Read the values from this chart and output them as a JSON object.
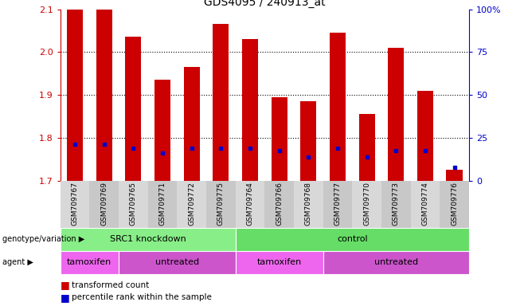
{
  "title": "GDS4095 / 240913_at",
  "samples": [
    "GSM709767",
    "GSM709769",
    "GSM709765",
    "GSM709771",
    "GSM709772",
    "GSM709775",
    "GSM709764",
    "GSM709766",
    "GSM709768",
    "GSM709777",
    "GSM709770",
    "GSM709773",
    "GSM709774",
    "GSM709776"
  ],
  "bar_tops": [
    2.1,
    2.1,
    2.035,
    1.935,
    1.965,
    2.065,
    2.03,
    1.895,
    1.885,
    2.045,
    1.855,
    2.01,
    1.91,
    1.725
  ],
  "bar_base": 1.7,
  "percentile_values": [
    1.785,
    1.785,
    1.775,
    1.765,
    1.775,
    1.775,
    1.775,
    1.77,
    1.755,
    1.775,
    1.755,
    1.77,
    1.77,
    1.73
  ],
  "ylim_left": [
    1.7,
    2.1
  ],
  "ylim_right": [
    0,
    100
  ],
  "yticks_left": [
    1.7,
    1.8,
    1.9,
    2.0,
    2.1
  ],
  "yticks_right": [
    0,
    25,
    50,
    75,
    100
  ],
  "bar_color": "#cc0000",
  "percentile_color": "#0000cc",
  "bar_width": 0.55,
  "groups": [
    {
      "label": "SRC1 knockdown",
      "start": 0,
      "end": 6,
      "color": "#88ee88"
    },
    {
      "label": "control",
      "start": 6,
      "end": 14,
      "color": "#66dd66"
    }
  ],
  "agents": [
    {
      "label": "tamoxifen",
      "start": 0,
      "end": 2,
      "color": "#ee66ee"
    },
    {
      "label": "untreated",
      "start": 2,
      "end": 6,
      "color": "#cc55cc"
    },
    {
      "label": "tamoxifen",
      "start": 6,
      "end": 9,
      "color": "#ee66ee"
    },
    {
      "label": "untreated",
      "start": 9,
      "end": 14,
      "color": "#cc55cc"
    }
  ],
  "legend_items": [
    {
      "label": "transformed count",
      "color": "#cc0000"
    },
    {
      "label": "percentile rank within the sample",
      "color": "#0000cc"
    }
  ],
  "genotype_label": "genotype/variation",
  "agent_label": "agent",
  "bg_color": "#ffffff",
  "tick_label_color_left": "#cc0000",
  "tick_label_color_right": "#0000cc",
  "right_axis_label": "%",
  "sample_bg_even": "#d8d8d8",
  "sample_bg_odd": "#c8c8c8"
}
